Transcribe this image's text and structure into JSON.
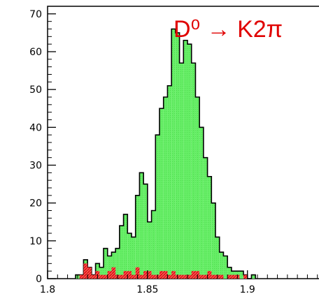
{
  "chart_data": {
    "type": "histogram",
    "title": "D⁰ → K2π",
    "title_color": "#e00000",
    "xlabel": "",
    "ylabel": "",
    "xlim": [
      1.8,
      1.94
    ],
    "ylim": [
      0,
      72
    ],
    "x_ticks": [
      {
        "value": 1.8,
        "label": "1.8"
      },
      {
        "value": 1.85,
        "label": "1.85"
      },
      {
        "value": 1.9,
        "label": "1.9"
      }
    ],
    "y_ticks": [
      {
        "value": 0,
        "label": "0"
      },
      {
        "value": 10,
        "label": "10"
      },
      {
        "value": 20,
        "label": "20"
      },
      {
        "value": 30,
        "label": "30"
      },
      {
        "value": 40,
        "label": "40"
      },
      {
        "value": 50,
        "label": "50"
      },
      {
        "value": 60,
        "label": "60"
      },
      {
        "value": 70,
        "label": "70"
      }
    ],
    "bin_edges_start": 1.814,
    "bin_width": 0.002,
    "series": [
      {
        "fill": "#66ee66",
        "outline": "#000000",
        "values": [
          1,
          1,
          5,
          3,
          1,
          4,
          3,
          8,
          6,
          7,
          8,
          14,
          17,
          12,
          11,
          22,
          28,
          25,
          15,
          18,
          38,
          45,
          48,
          51,
          66,
          65,
          57,
          63,
          62,
          57,
          48,
          40,
          32,
          27,
          20,
          11,
          7,
          6,
          3,
          2,
          2,
          2,
          1,
          0,
          1
        ]
      },
      {
        "fill": "#ff5555",
        "hatch": true,
        "values": [
          0,
          1,
          4,
          3,
          1,
          2,
          1,
          1,
          2,
          3,
          1,
          1,
          2,
          2,
          1,
          3,
          1,
          2,
          2,
          1,
          1,
          2,
          2,
          1,
          2,
          1,
          1,
          1,
          1,
          2,
          2,
          1,
          1,
          2,
          1,
          1,
          1,
          0,
          1,
          1,
          1,
          0,
          1,
          0,
          0
        ]
      }
    ]
  }
}
